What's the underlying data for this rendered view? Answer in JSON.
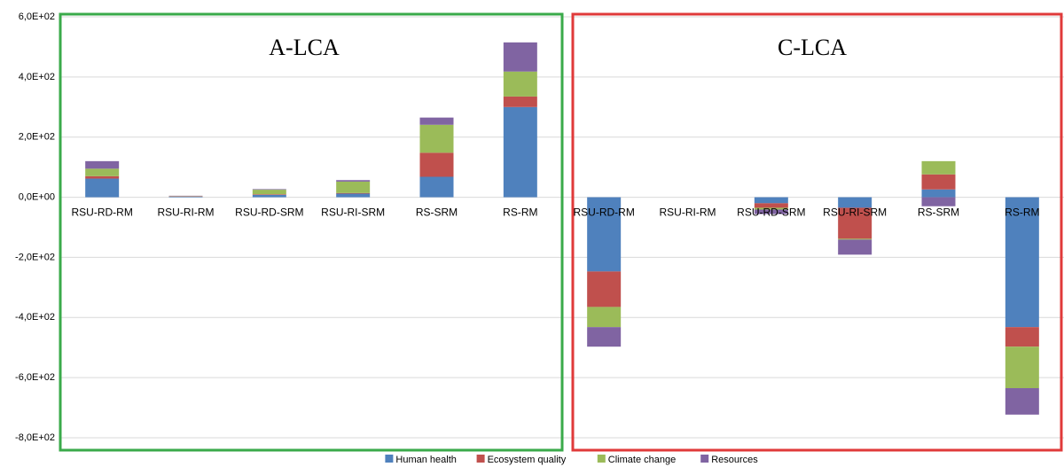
{
  "chart_data": {
    "type": "stacked_bar",
    "annotations": [
      "A-LCA",
      "C-LCA"
    ],
    "categories": [
      "RSU-RD-RM",
      "RSU-RI-RM",
      "RSU-RD-SRM",
      "RSU-RI-SRM",
      "RS-SRM",
      "RS-RM",
      "RSU-RD-RM",
      "RSU-RI-RM",
      "RSU-RD-SRM",
      "RSU-RI-SRM",
      "RS-SRM",
      "RS-RM"
    ],
    "series": [
      {
        "name": "Human health",
        "color": "#4f81bd",
        "values": [
          62,
          2,
          8,
          12,
          68,
          300,
          -247,
          0,
          -20,
          -35,
          26,
          -432
        ]
      },
      {
        "name": "Ecosystem quality",
        "color": "#c0504d",
        "values": [
          8,
          1,
          2,
          2,
          80,
          35,
          -118,
          0,
          -15,
          -103,
          50,
          -65
        ]
      },
      {
        "name": "Climate change",
        "color": "#9bbb59",
        "values": [
          25,
          1,
          15,
          38,
          93,
          83,
          -67,
          0,
          -6,
          -3,
          44,
          -138
        ]
      },
      {
        "name": "Resources",
        "color": "#8064a2",
        "values": [
          25,
          1,
          2,
          5,
          24,
          97,
          -65,
          0,
          -15,
          -50,
          -30,
          -88
        ]
      }
    ],
    "ylim": [
      -800,
      600
    ],
    "yticks": [
      {
        "value": -800,
        "label": "-8,0E+02"
      },
      {
        "value": -600,
        "label": "-6,0E+02"
      },
      {
        "value": -400,
        "label": "-4,0E+02"
      },
      {
        "value": -200,
        "label": "-2,0E+02"
      },
      {
        "value": 0,
        "label": "0,0E+00"
      },
      {
        "value": 200,
        "label": "2,0E+02"
      },
      {
        "value": 400,
        "label": "4,0E+02"
      },
      {
        "value": 600,
        "label": "6,0E+02"
      }
    ],
    "grid": true,
    "legend": "bottom"
  }
}
